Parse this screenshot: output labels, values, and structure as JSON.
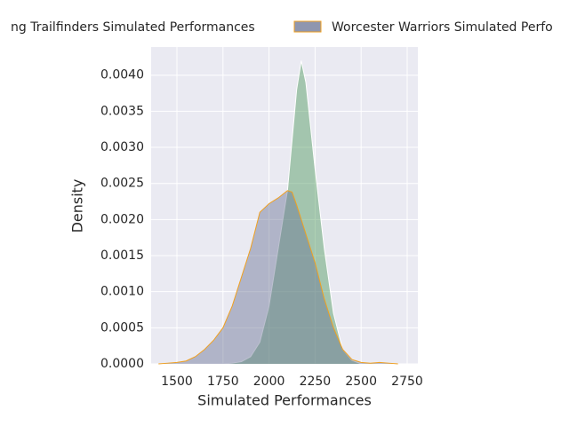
{
  "chart_data": {
    "type": "area",
    "xlabel": "Simulated Performances",
    "ylabel": "Density",
    "x": [
      1400,
      1450,
      1500,
      1550,
      1600,
      1650,
      1700,
      1750,
      1800,
      1850,
      1900,
      1950,
      2000,
      2050,
      2100,
      2125,
      2150,
      2175,
      2200,
      2225,
      2250,
      2300,
      2350,
      2400,
      2450,
      2500,
      2550,
      2600,
      2650,
      2700
    ],
    "series": [
      {
        "name": "ng Trailfinders Simulated Performances",
        "color": "#4e9a5a",
        "edgecolor": "#ffffff",
        "values": [
          0,
          0,
          0,
          0,
          0,
          0,
          0,
          0,
          1e-05,
          3e-05,
          0.0001,
          0.0003,
          0.0008,
          0.0016,
          0.0024,
          0.0031,
          0.0038,
          0.0042,
          0.0039,
          0.0033,
          0.0027,
          0.0016,
          0.0007,
          0.0002,
          5e-05,
          0,
          0,
          0,
          0,
          0
        ]
      },
      {
        "name": "Worcester Warriors Simulated Perfo",
        "color": "#6a7394",
        "edgecolor": "#f0a020",
        "values": [
          0,
          1e-05,
          2e-05,
          4e-05,
          0.0001,
          0.0002,
          0.00033,
          0.0005,
          0.0008,
          0.0012,
          0.0016,
          0.0021,
          0.00222,
          0.0023,
          0.0024,
          0.00238,
          0.0022,
          0.002,
          0.0018,
          0.0016,
          0.0014,
          0.0009,
          0.0005,
          0.0002,
          6e-05,
          2e-05,
          1e-05,
          2e-05,
          1e-05,
          0
        ]
      }
    ],
    "xlim": [
      1360,
      2808
    ],
    "xticks": [
      1500,
      1750,
      2000,
      2250,
      2500,
      2750
    ],
    "ylim": [
      0,
      0.00439
    ],
    "yticks": [
      {
        "value": 0,
        "label": "0.0000"
      },
      {
        "value": 0.0005,
        "label": "0.0005"
      },
      {
        "value": 0.001,
        "label": "0.0010"
      },
      {
        "value": 0.0015,
        "label": "0.0015"
      },
      {
        "value": 0.002,
        "label": "0.0020"
      },
      {
        "value": 0.0025,
        "label": "0.0025"
      },
      {
        "value": 0.003,
        "label": "0.0030"
      },
      {
        "value": 0.0035,
        "label": "0.0035"
      },
      {
        "value": 0.004,
        "label": "0.0040"
      }
    ],
    "grid": true,
    "legend": "top"
  }
}
